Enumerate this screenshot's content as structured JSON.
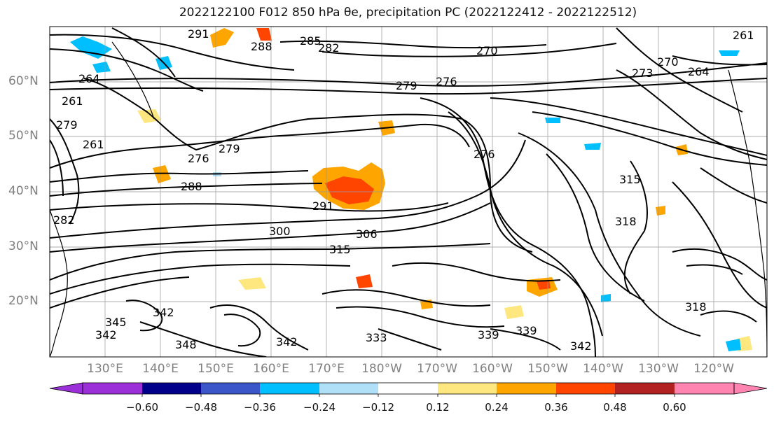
{
  "title": "2022122100 F012 850 hPa θe, precipitation PC (2022122412 - 2022122512)",
  "lat_labels": [
    "60°N",
    "50°N",
    "40°N",
    "30°N",
    "20°N"
  ],
  "lon_labels": [
    "130°E",
    "140°E",
    "150°E",
    "160°E",
    "170°E",
    "180°W",
    "170°W",
    "160°W",
    "150°W",
    "140°W",
    "130°W",
    "120°W"
  ],
  "contour_labels": [
    "291",
    "288",
    "285",
    "282",
    "270",
    "279",
    "276",
    "264",
    "261",
    "264",
    "261",
    "282",
    "276",
    "279",
    "288",
    "291",
    "300",
    "306",
    "315",
    "315",
    "318",
    "342",
    "348",
    "342",
    "339",
    "339",
    "333",
    "342",
    "318",
    "261",
    "270",
    "273",
    "276",
    "279",
    "345",
    "342"
  ],
  "colorbar": {
    "tick_labels": [
      "−0.60",
      "−0.48",
      "−0.36",
      "−0.24",
      "−0.12",
      "0.12",
      "0.24",
      "0.36",
      "0.48",
      "0.60"
    ],
    "colors": [
      "#9b30d8",
      "#00008b",
      "#3a56c8",
      "#00bfff",
      "#b0e0f8",
      "#ffffff",
      "#ffe780",
      "#ffa500",
      "#ff4500",
      "#b22222",
      "#ff85b0"
    ]
  }
}
